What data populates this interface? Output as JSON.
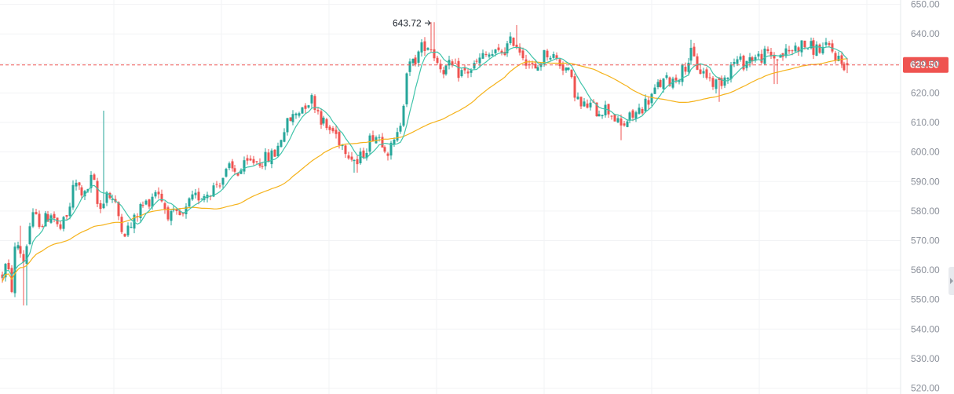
{
  "colors": {
    "up": "#26a69a",
    "down": "#ef5350",
    "ma_fast": "#40c4aa",
    "ma_slow": "#f5b21a",
    "grid": "#f2f3f5",
    "axis_text": "#8a8f99",
    "price_line": "#ef5350"
  },
  "chart_data": {
    "type": "candlestick",
    "y_axis": {
      "position": "right",
      "ticks": [
        650,
        640,
        630,
        620,
        610,
        600,
        590,
        580,
        570,
        560,
        550,
        540,
        530,
        520
      ],
      "tick_labels": [
        "650.00",
        "640.00",
        "630.00",
        "620.00",
        "610.00",
        "600.00",
        "590.00",
        "580.00",
        "570.00",
        "560.00",
        "550.00",
        "540.00",
        "530.00",
        "520.00"
      ],
      "range": [
        518.0,
        651.5
      ]
    },
    "grid": true,
    "last_price": {
      "value": 629.5,
      "label": "629.50"
    },
    "annotation": {
      "label": "643.72",
      "value": 643.72
    },
    "overlays": [
      {
        "name": "",
        "kind": "moving-average-fast"
      },
      {
        "name": "",
        "kind": "moving-average-slow"
      }
    ],
    "close_path": [
      [
        0,
        556
      ],
      [
        8,
        562
      ],
      [
        16,
        553
      ],
      [
        20,
        571
      ],
      [
        30,
        563
      ],
      [
        40,
        578
      ],
      [
        55,
        576
      ],
      [
        66,
        580
      ],
      [
        75,
        573
      ],
      [
        86,
        578
      ],
      [
        95,
        590
      ],
      [
        108,
        585
      ],
      [
        118,
        592
      ],
      [
        126,
        579
      ],
      [
        135,
        587
      ],
      [
        145,
        583
      ],
      [
        158,
        573
      ],
      [
        168,
        575
      ],
      [
        178,
        581
      ],
      [
        188,
        583
      ],
      [
        200,
        588
      ],
      [
        210,
        581
      ],
      [
        218,
        578
      ],
      [
        226,
        578
      ],
      [
        234,
        578
      ],
      [
        242,
        583
      ],
      [
        252,
        585
      ],
      [
        262,
        586
      ],
      [
        272,
        588
      ],
      [
        282,
        591
      ],
      [
        292,
        594
      ],
      [
        302,
        593
      ],
      [
        312,
        595
      ],
      [
        322,
        597
      ],
      [
        332,
        597
      ],
      [
        342,
        598
      ],
      [
        352,
        600
      ],
      [
        360,
        607
      ],
      [
        370,
        611
      ],
      [
        380,
        614
      ],
      [
        390,
        617
      ],
      [
        398,
        618
      ],
      [
        405,
        614
      ],
      [
        415,
        608
      ],
      [
        425,
        607
      ],
      [
        435,
        603
      ],
      [
        445,
        600
      ],
      [
        455,
        596
      ],
      [
        465,
        601
      ],
      [
        475,
        606
      ],
      [
        485,
        605
      ],
      [
        495,
        600
      ],
      [
        505,
        604
      ],
      [
        512,
        613
      ],
      [
        518,
        628
      ],
      [
        526,
        630
      ],
      [
        534,
        634
      ],
      [
        542,
        637
      ],
      [
        550,
        635
      ],
      [
        558,
        630
      ],
      [
        566,
        628
      ],
      [
        574,
        629
      ],
      [
        584,
        627
      ],
      [
        594,
        627
      ],
      [
        604,
        629
      ],
      [
        614,
        632
      ],
      [
        624,
        633
      ],
      [
        634,
        633
      ],
      [
        644,
        635
      ],
      [
        654,
        638
      ],
      [
        664,
        634
      ],
      [
        674,
        630
      ],
      [
        682,
        627
      ],
      [
        690,
        632
      ],
      [
        698,
        634
      ],
      [
        706,
        632
      ],
      [
        714,
        630
      ],
      [
        722,
        628
      ],
      [
        730,
        622
      ],
      [
        740,
        615
      ],
      [
        750,
        616
      ],
      [
        760,
        614
      ],
      [
        770,
        615
      ],
      [
        780,
        613
      ],
      [
        790,
        608
      ],
      [
        800,
        611
      ],
      [
        810,
        613
      ],
      [
        820,
        616
      ],
      [
        830,
        619
      ],
      [
        840,
        623
      ],
      [
        850,
        624
      ],
      [
        860,
        625
      ],
      [
        870,
        628
      ],
      [
        880,
        633
      ],
      [
        890,
        628
      ],
      [
        900,
        626
      ],
      [
        910,
        623
      ],
      [
        918,
        624
      ],
      [
        926,
        627
      ],
      [
        936,
        631
      ],
      [
        946,
        630
      ],
      [
        956,
        632
      ],
      [
        966,
        632
      ],
      [
        976,
        633
      ],
      [
        986,
        632
      ],
      [
        996,
        633
      ],
      [
        1006,
        634
      ],
      [
        1016,
        636
      ],
      [
        1026,
        636
      ],
      [
        1036,
        635
      ],
      [
        1046,
        635
      ],
      [
        1056,
        635
      ],
      [
        1064,
        633
      ],
      [
        1072,
        630
      ],
      [
        1080,
        629.5
      ],
      [
        1085,
        629.5
      ]
    ]
  }
}
